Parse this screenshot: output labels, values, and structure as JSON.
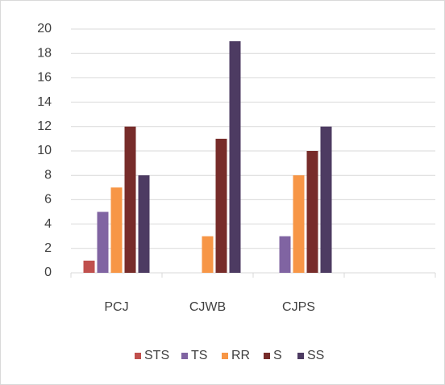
{
  "chart_data": {
    "type": "bar",
    "categories": [
      "PCJ",
      "CJWB",
      "CJPS",
      null
    ],
    "series": [
      {
        "name": "STS",
        "color": "#c0504d",
        "values": [
          1,
          0,
          0,
          null
        ]
      },
      {
        "name": "TS",
        "color": "#8064a2",
        "values": [
          5,
          0,
          3,
          null
        ]
      },
      {
        "name": "RR",
        "color": "#f79646",
        "values": [
          7,
          3,
          8,
          null
        ]
      },
      {
        "name": "S",
        "color": "#772c2a",
        "values": [
          12,
          11,
          10,
          null
        ]
      },
      {
        "name": "SS",
        "color": "#4d3b62",
        "values": [
          8,
          19,
          12,
          null
        ]
      }
    ],
    "ylim": [
      0,
      20
    ],
    "yticks": [
      0,
      2,
      4,
      6,
      8,
      10,
      12,
      14,
      16,
      18,
      20
    ],
    "grid": true,
    "legend": "bottom"
  }
}
